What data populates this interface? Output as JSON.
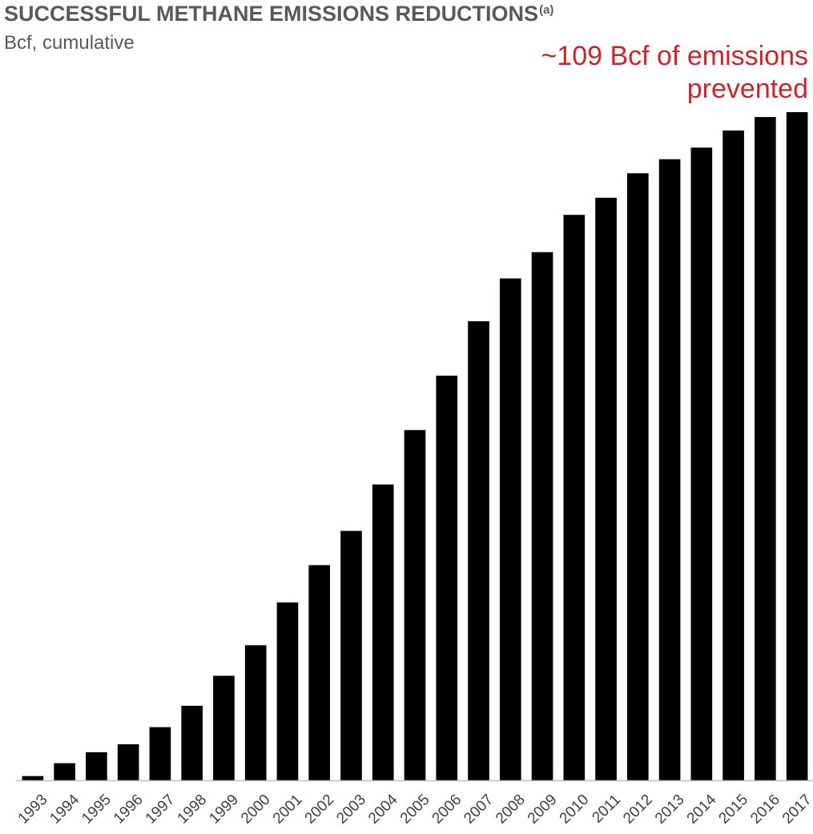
{
  "chart_data": {
    "type": "bar",
    "title": "SUCCESSFUL METHANE EMISSIONS REDUCTIONS",
    "title_superscript": "(a)",
    "subtitle": "Bcf, cumulative",
    "annotation_lines": [
      "~109 Bcf of emissions",
      "prevented"
    ],
    "xlabel": "",
    "ylabel": "",
    "categories": [
      "1993",
      "1994",
      "1995",
      "1996",
      "1997",
      "1998",
      "1999",
      "2000",
      "2001",
      "2002",
      "2003",
      "2004",
      "2005",
      "2006",
      "2007",
      "2008",
      "2009",
      "2010",
      "2011",
      "2012",
      "2013",
      "2014",
      "2015",
      "2016",
      "2017"
    ],
    "series": [
      {
        "values": [
          0.7,
          2.8,
          4.6,
          5.9,
          8.7,
          12.2,
          17.1,
          22.1,
          29.1,
          35.2,
          40.8,
          48.4,
          57.3,
          66.2,
          75.1,
          82.1,
          86.4,
          92.5,
          95.3,
          99.3,
          101.6,
          103.5,
          106.3,
          108.5,
          109.3
        ]
      }
    ],
    "ylim": [
      0,
      109.3
    ],
    "grid": false,
    "legend": "none",
    "colors": {
      "bar": "#000000",
      "title": "#595959",
      "annotation": "#c8262c",
      "axis": "#bfbfbf"
    }
  }
}
